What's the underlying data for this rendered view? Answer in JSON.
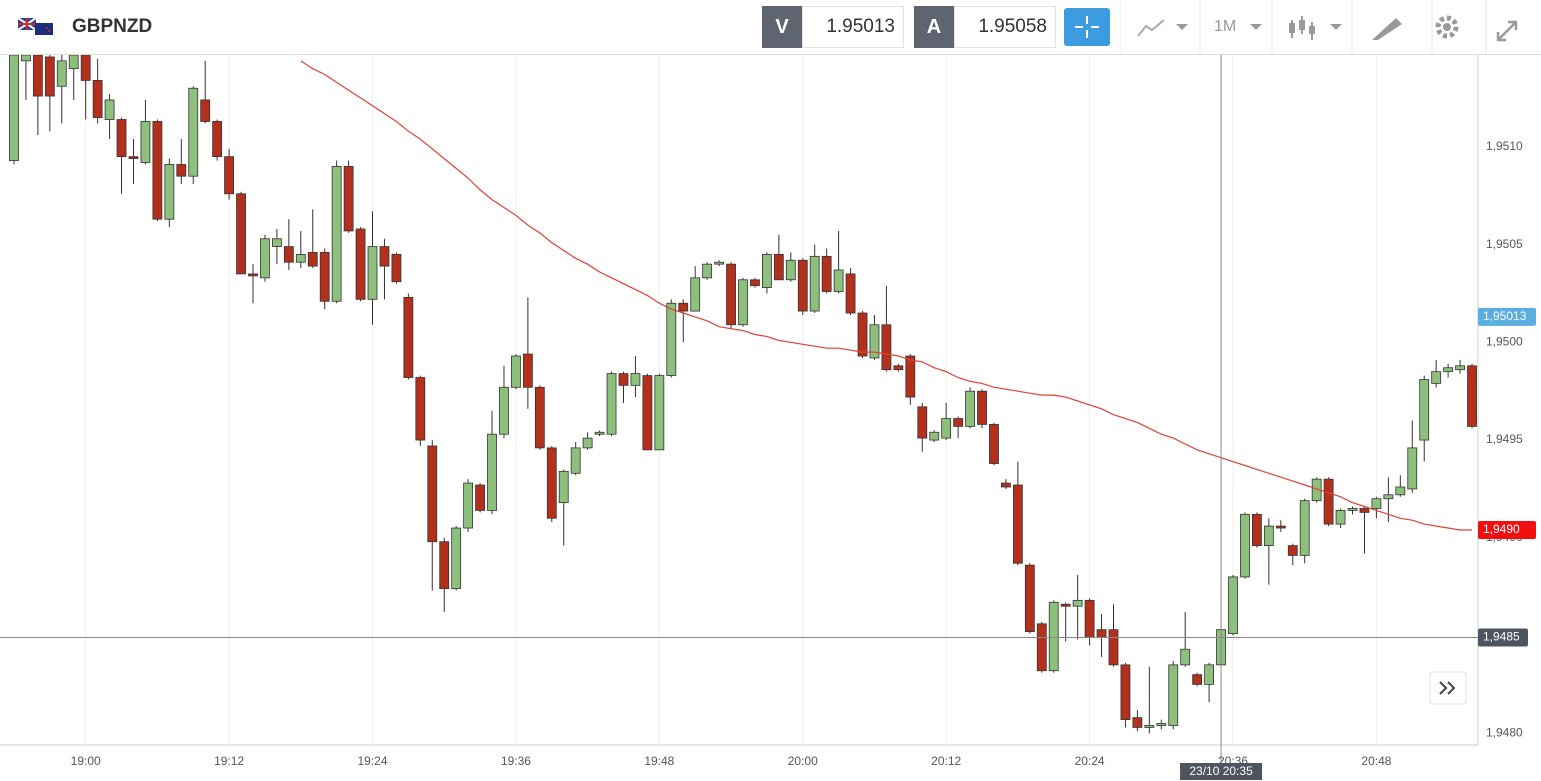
{
  "toolbar": {
    "symbol": "GBPNZD",
    "sell_label": "V",
    "sell_price": 1.95013,
    "buy_label": "A",
    "buy_price": 1.95058,
    "timeframe": "1M"
  },
  "chart_data": {
    "type": "candlestick",
    "up_color": "#8dbf7d",
    "down_color": "#b3301c",
    "categories": [
      null,
      null,
      null,
      null,
      null,
      null,
      "19:00",
      null,
      null,
      null,
      null,
      null,
      null,
      null,
      null,
      null,
      null,
      null,
      "19:12",
      null,
      null,
      null,
      null,
      null,
      null,
      null,
      null,
      null,
      null,
      null,
      "19:24",
      null,
      null,
      null,
      null,
      null,
      null,
      null,
      null,
      null,
      null,
      null,
      "19:36",
      null,
      null,
      null,
      null,
      null,
      null,
      null,
      null,
      null,
      null,
      null,
      "19:48",
      null,
      null,
      null,
      null,
      null,
      null,
      null,
      null,
      null,
      null,
      null,
      "20:00",
      null,
      null,
      null,
      null,
      null,
      null,
      null,
      null,
      null,
      null,
      null,
      "20:12",
      null,
      null,
      null,
      null,
      null,
      null,
      null,
      null,
      null,
      null,
      null,
      "20:24",
      null,
      null,
      null,
      null,
      null,
      null,
      null,
      null,
      null,
      null,
      null,
      "20:36",
      null,
      null,
      null,
      null,
      null,
      null,
      null,
      null,
      null,
      null,
      null,
      "20:48",
      null,
      null,
      null,
      null,
      null,
      null,
      null,
      null
    ],
    "open": [
      1.95093,
      1.95144,
      1.95147,
      1.95146,
      1.95131,
      1.9514,
      1.95147,
      1.95134,
      1.95114,
      1.95114,
      1.95095,
      1.95092,
      1.95113,
      1.95063,
      1.95091,
      1.95085,
      1.95124,
      1.95113,
      1.95095,
      1.95076,
      1.95035,
      1.95033,
      1.95049,
      1.95049,
      1.95041,
      1.95046,
      1.95046,
      1.95021,
      1.9509,
      1.95058,
      1.95022,
      1.95049,
      1.95045,
      1.95023,
      1.94982,
      1.94947,
      1.94898,
      1.94874,
      1.94905,
      1.94927,
      1.94914,
      1.94953,
      1.94977,
      1.94994,
      1.94977,
      1.94946,
      1.94918,
      1.94933,
      1.94946,
      1.94953,
      1.94953,
      1.94984,
      1.94978,
      1.94983,
      1.94945,
      1.94983,
      1.9502,
      1.95016,
      1.95033,
      1.9504,
      1.9504,
      1.95009,
      1.95032,
      1.95028,
      1.95045,
      1.95032,
      1.95042,
      1.95016,
      1.95044,
      1.95026,
      1.95035,
      1.95015,
      1.94992,
      1.95009,
      1.94988,
      1.94993,
      1.94967,
      1.9495,
      1.94951,
      1.94961,
      1.94957,
      1.94975,
      1.94958,
      1.94928,
      1.94927,
      1.94886,
      1.94856,
      1.94832,
      1.94866,
      1.94865,
      1.94868,
      1.94853,
      1.94853,
      1.94835,
      1.94808,
      1.94803,
      1.94804,
      1.94804,
      1.94835,
      1.9483,
      1.94825,
      1.94835,
      1.94851,
      1.9488,
      1.94912,
      1.94896,
      1.94906,
      1.94896,
      1.94891,
      1.94919,
      1.9493,
      1.94907,
      1.94914,
      1.94915,
      1.94915,
      1.9492,
      1.94922,
      1.94925,
      1.9495,
      1.94979,
      1.94985,
      1.94986,
      1.94988
    ],
    "high": [
      1.9515,
      1.9515,
      1.9515,
      1.95147,
      1.95147,
      1.9515,
      1.9515,
      1.95145,
      1.95127,
      1.95115,
      1.95104,
      1.95124,
      1.95114,
      1.95094,
      1.95104,
      1.95131,
      1.95144,
      1.95114,
      1.95099,
      1.95077,
      1.9504,
      1.95055,
      1.95058,
      1.95063,
      1.95057,
      1.95068,
      1.95048,
      1.95093,
      1.95093,
      1.95059,
      1.95067,
      1.95053,
      1.95046,
      1.95025,
      1.94983,
      1.9495,
      1.949,
      1.94906,
      1.9493,
      1.94928,
      1.94965,
      1.94988,
      1.94994,
      1.95023,
      1.94978,
      1.94947,
      1.94935,
      1.94949,
      1.94954,
      1.94955,
      1.94985,
      1.94985,
      1.94993,
      1.94984,
      1.94984,
      1.95022,
      1.95022,
      1.95039,
      1.95041,
      1.95042,
      1.95041,
      1.95033,
      1.95033,
      1.95046,
      1.95055,
      1.95046,
      1.95043,
      1.9505,
      1.95048,
      1.95057,
      1.95038,
      1.95016,
      1.95014,
      1.95029,
      1.94989,
      1.94994,
      1.94969,
      1.94955,
      1.94969,
      1.94962,
      1.94977,
      1.94976,
      1.94959,
      1.9493,
      1.94939,
      1.94887,
      1.94857,
      1.94868,
      1.94867,
      1.94881,
      1.94869,
      1.94861,
      1.94866,
      1.94836,
      1.94812,
      1.94834,
      1.94807,
      1.94837,
      1.94862,
      1.94831,
      1.94836,
      1.94854,
      1.94881,
      1.94913,
      1.94913,
      1.9491,
      1.94909,
      1.94897,
      1.9492,
      1.94931,
      1.94931,
      1.94915,
      1.94916,
      1.94916,
      1.94921,
      1.94931,
      1.94932,
      1.9496,
      1.94983,
      1.94991,
      1.94989,
      1.94991,
      1.94989
    ],
    "low": [
      1.95091,
      1.95124,
      1.95106,
      1.95108,
      1.95112,
      1.95124,
      1.95114,
      1.95112,
      1.95104,
      1.95076,
      1.95081,
      1.95091,
      1.95062,
      1.95059,
      1.95081,
      1.95081,
      1.95112,
      1.95093,
      1.95073,
      1.95035,
      1.9502,
      1.95031,
      1.9504,
      1.95037,
      1.95038,
      1.95038,
      1.95017,
      1.9502,
      1.95056,
      1.95021,
      1.95009,
      1.95022,
      1.9503,
      1.94981,
      1.94947,
      1.94873,
      1.94862,
      1.94873,
      1.94903,
      1.94913,
      1.94912,
      1.94951,
      1.94976,
      1.94966,
      1.94945,
      1.94908,
      1.94896,
      1.94932,
      1.94945,
      1.94952,
      1.94952,
      1.94969,
      1.94972,
      1.94945,
      1.94945,
      1.94982,
      1.95,
      1.95016,
      1.95032,
      1.95039,
      1.95007,
      1.95008,
      1.95028,
      1.95025,
      1.95032,
      1.95031,
      1.95014,
      1.95015,
      1.95025,
      1.95025,
      1.95014,
      1.94992,
      1.94991,
      1.94985,
      1.94985,
      1.94968,
      1.94944,
      1.94949,
      1.9495,
      1.94951,
      1.94956,
      1.94956,
      1.94937,
      1.94925,
      1.94886,
      1.94851,
      1.94831,
      1.94831,
      1.94847,
      1.94848,
      1.94845,
      1.94839,
      1.94834,
      1.94803,
      1.94801,
      1.948,
      1.94802,
      1.94802,
      1.94834,
      1.94824,
      1.94816,
      1.94834,
      1.9485,
      1.94879,
      1.94895,
      1.94876,
      1.94903,
      1.94886,
      1.94887,
      1.94918,
      1.94906,
      1.94905,
      1.94912,
      1.94892,
      1.9491,
      1.94908,
      1.94921,
      1.94923,
      1.94939,
      1.94977,
      1.94982,
      1.94984,
      1.94956
    ],
    "close": [
      1.95147,
      1.95147,
      1.95126,
      1.95126,
      1.95144,
      1.95147,
      1.95134,
      1.95115,
      1.95124,
      1.95095,
      1.95094,
      1.95113,
      1.95063,
      1.95091,
      1.95085,
      1.9513,
      1.95113,
      1.95095,
      1.95076,
      1.95035,
      1.95034,
      1.95053,
      1.95053,
      1.95041,
      1.95045,
      1.95039,
      1.95021,
      1.9509,
      1.95057,
      1.95022,
      1.95049,
      1.95039,
      1.95031,
      1.94982,
      1.9495,
      1.94898,
      1.94874,
      1.94905,
      1.94928,
      1.94914,
      1.94953,
      1.94977,
      1.94993,
      1.94977,
      1.94946,
      1.9491,
      1.94934,
      1.94946,
      1.94951,
      1.94954,
      1.94984,
      1.94978,
      1.94984,
      1.94945,
      1.94983,
      1.9502,
      1.95016,
      1.95033,
      1.9504,
      1.95041,
      1.95009,
      1.95032,
      1.95029,
      1.95045,
      1.95032,
      1.95042,
      1.95016,
      1.95044,
      1.95026,
      1.95037,
      1.95015,
      1.94993,
      1.95009,
      1.94986,
      1.94986,
      1.94972,
      1.94951,
      1.94954,
      1.94961,
      1.94957,
      1.94975,
      1.94958,
      1.94938,
      1.94926,
      1.94887,
      1.94852,
      1.94832,
      1.94867,
      1.94865,
      1.94868,
      1.94849,
      1.94849,
      1.94835,
      1.94807,
      1.94803,
      1.94804,
      1.94805,
      1.94835,
      1.94843,
      1.94825,
      1.94835,
      1.94853,
      1.9488,
      1.94912,
      1.94896,
      1.94906,
      1.94905,
      1.94891,
      1.94919,
      1.9493,
      1.94907,
      1.94914,
      1.94915,
      1.94913,
      1.9492,
      1.94922,
      1.94926,
      1.94946,
      1.94981,
      1.94985,
      1.94987,
      1.94988,
      1.94957
    ],
    "ma": {
      "type": "line",
      "color": "#e0403a",
      "values": [
        null,
        null,
        null,
        null,
        null,
        null,
        null,
        null,
        null,
        null,
        null,
        null,
        null,
        null,
        null,
        null,
        null,
        null,
        null,
        null,
        null,
        null,
        null,
        null,
        1.95144,
        1.9514,
        1.95137,
        1.95133,
        1.95129,
        1.95125,
        1.95121,
        1.95117,
        1.95113,
        1.95108,
        1.95104,
        1.95099,
        1.95094,
        1.95089,
        1.95084,
        1.95078,
        1.95073,
        1.95069,
        1.95065,
        1.9506,
        1.95056,
        1.95051,
        1.95047,
        1.95043,
        1.9504,
        1.95036,
        1.95033,
        1.9503,
        1.95027,
        1.95024,
        1.9502,
        1.95017,
        1.95015,
        1.95013,
        1.95011,
        1.95008,
        1.95007,
        1.95006,
        1.95004,
        1.95003,
        1.95001,
        1.95,
        1.94999,
        1.94998,
        1.94997,
        1.94997,
        1.94996,
        1.94995,
        1.94995,
        1.94994,
        1.94993,
        1.94991,
        1.9499,
        1.94987,
        1.94985,
        1.94982,
        1.9498,
        1.94979,
        1.94977,
        1.94976,
        1.94975,
        1.94974,
        1.94973,
        1.94973,
        1.94972,
        1.9497,
        1.94968,
        1.94966,
        1.94963,
        1.94961,
        1.94959,
        1.94956,
        1.94953,
        1.94951,
        1.94948,
        1.94945,
        1.94943,
        1.94941,
        1.94939,
        1.94937,
        1.94935,
        1.94933,
        1.94931,
        1.94929,
        1.94927,
        1.94925,
        1.94923,
        1.94921,
        1.94918,
        1.94916,
        1.94914,
        1.94912,
        1.9491,
        1.94909,
        1.94907,
        1.94906,
        1.94905,
        1.94904,
        1.94904
      ]
    },
    "ylim": [
      1.94794,
      1.95147
    ],
    "yticks": [
      {
        "value": 1.948,
        "label": "1,9480"
      },
      {
        "value": 1.9485,
        "label": "1,9485"
      },
      {
        "value": 1.949,
        "label": "1,9490"
      },
      {
        "value": 1.9495,
        "label": "1,9495"
      },
      {
        "value": 1.95,
        "label": "1,9500"
      },
      {
        "value": 1.9505,
        "label": "1,9505"
      },
      {
        "value": 1.951,
        "label": "1,9510"
      }
    ],
    "grid": true,
    "markers": [
      {
        "value": 1.95013,
        "label": "1,95013",
        "color": "#5aaee0"
      },
      {
        "value": 1.94904,
        "label": "1,9490",
        "color": "#f01010"
      }
    ],
    "crosshair": {
      "x": "23/10 20:35",
      "y": {
        "value": 1.94849,
        "label": "1,9485"
      },
      "color": "#4e5560"
    }
  }
}
